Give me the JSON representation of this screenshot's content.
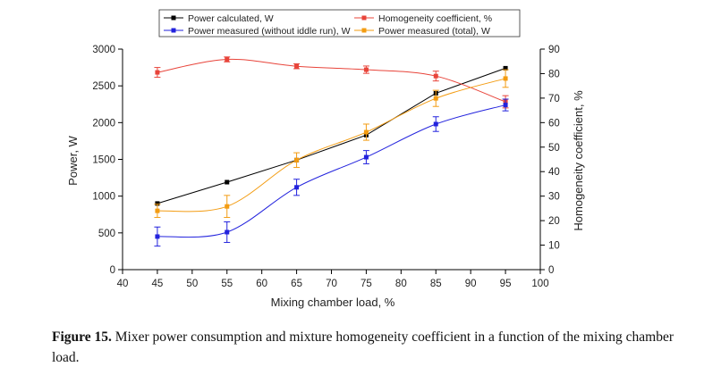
{
  "caption": {
    "label": "Figure 15.",
    "text": "Mixer power consumption and mixture homogeneity coefficient in a function of the mixing chamber load."
  },
  "chart_data": {
    "type": "line",
    "xlabel": "Mixing chamber load, %",
    "ylabel_left": "Power, W",
    "ylabel_right": "Homogeneity coefficient, %",
    "xlim": [
      40,
      100
    ],
    "ylim_left": [
      0,
      3000
    ],
    "ylim_right": [
      0,
      90
    ],
    "x_ticks": [
      "40",
      "45",
      "50",
      "55",
      "60",
      "65",
      "70",
      "75",
      "80",
      "85",
      "90",
      "95",
      "100"
    ],
    "y_left_ticks": [
      "0",
      "500",
      "1000",
      "1500",
      "2000",
      "2500",
      "3000"
    ],
    "y_right_ticks": [
      "0",
      "10",
      "20",
      "30",
      "40",
      "50",
      "60",
      "70",
      "80",
      "90"
    ],
    "grid": false,
    "legend_position": "top",
    "x": [
      45,
      55,
      65,
      75,
      85,
      95
    ],
    "series": [
      {
        "name": "Power calculated, W",
        "axis": "left",
        "color": "#000000",
        "marker": "square",
        "values": [
          900,
          1190,
          1490,
          1830,
          2400,
          2740
        ],
        "errors": [
          0,
          0,
          0,
          0,
          0,
          0
        ]
      },
      {
        "name": "Homogeneity coefficient, %",
        "axis": "right",
        "color": "#e8443a",
        "marker": "square",
        "values": [
          80.5,
          85.8,
          83,
          81.6,
          79,
          68.5
        ],
        "errors": [
          2,
          1,
          1,
          1.5,
          2,
          2.5
        ]
      },
      {
        "name": "Power measured (without iddle run), W",
        "axis": "left",
        "color": "#2222dd",
        "marker": "square",
        "values": [
          450,
          510,
          1120,
          1530,
          1980,
          2240
        ],
        "errors": [
          130,
          140,
          110,
          90,
          100,
          80
        ]
      },
      {
        "name": "Power measured (total), W",
        "axis": "left",
        "color": "#f39c12",
        "marker": "square",
        "values": [
          800,
          860,
          1490,
          1870,
          2330,
          2600
        ],
        "errors": [
          90,
          150,
          100,
          110,
          110,
          120
        ]
      }
    ]
  }
}
